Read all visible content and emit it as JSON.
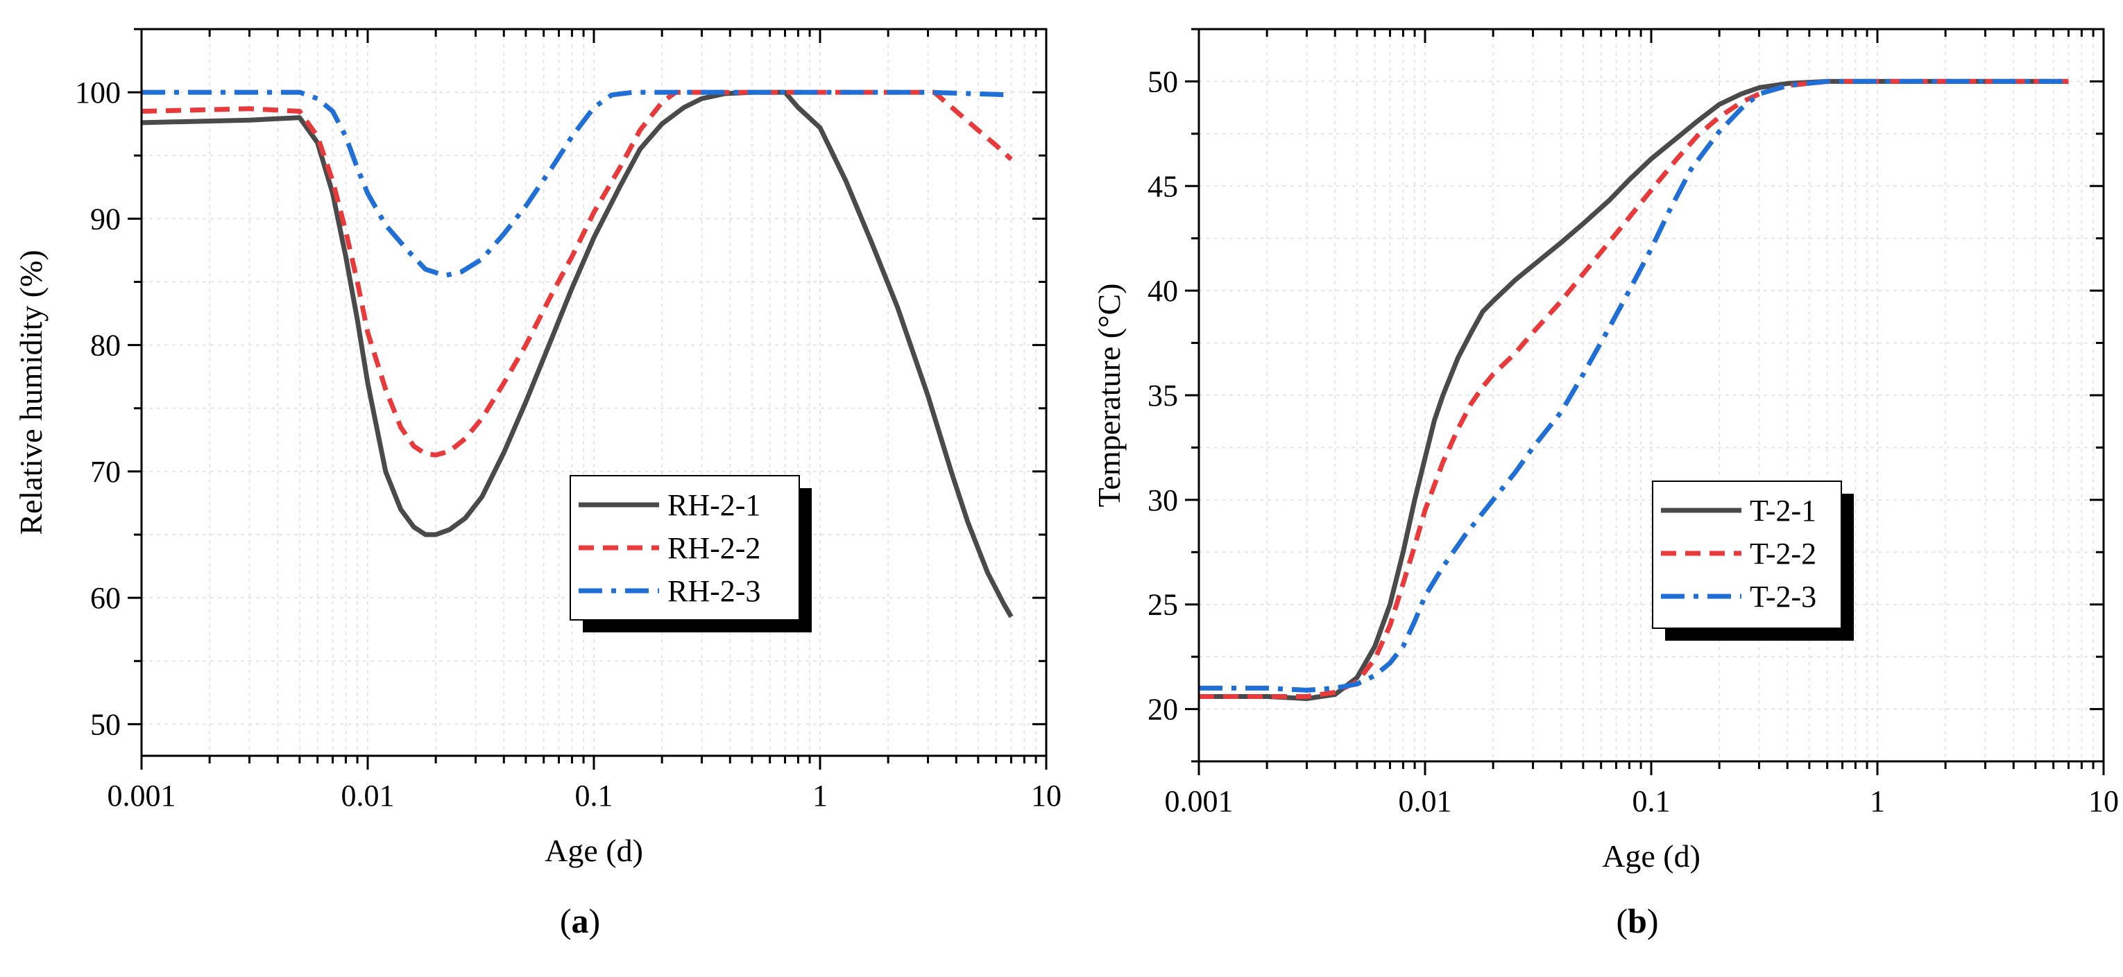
{
  "chart_data": [
    {
      "type": "line",
      "panel_label": "(a)",
      "panel_letter": "a",
      "xlabel": "Age (d)",
      "ylabel": "Relative humidity (%)",
      "xscale": "log",
      "xlim": [
        0.001,
        10
      ],
      "ylim": [
        47.5,
        105
      ],
      "xticks": [
        0.001,
        0.01,
        0.1,
        1,
        10
      ],
      "xtick_labels": [
        "0.001",
        "0.01",
        "0.1",
        "1",
        "10"
      ],
      "yticks": [
        50,
        60,
        70,
        80,
        90,
        100
      ],
      "ytick_labels": [
        "50",
        "60",
        "70",
        "80",
        "90",
        "100"
      ],
      "grid": true,
      "legend_position": "center-right",
      "series": [
        {
          "name": "RH-2-1",
          "color": "#4a4a4a",
          "dash": "solid",
          "x": [
            0.001,
            0.003,
            0.005,
            0.006,
            0.007,
            0.008,
            0.009,
            0.01,
            0.012,
            0.014,
            0.016,
            0.018,
            0.02,
            0.023,
            0.027,
            0.032,
            0.04,
            0.05,
            0.065,
            0.08,
            0.1,
            0.13,
            0.16,
            0.2,
            0.25,
            0.3,
            0.38,
            0.5,
            0.6,
            0.7,
            0.8,
            1.0,
            1.3,
            1.7,
            2.2,
            3.0,
            3.8,
            4.5,
            5.5,
            6.5,
            7.0
          ],
          "y": [
            97.6,
            97.8,
            98.0,
            96.0,
            92.0,
            87.0,
            82.0,
            77.0,
            70.0,
            67.0,
            65.6,
            65.0,
            65.0,
            65.4,
            66.3,
            68.0,
            71.5,
            75.5,
            80.5,
            84.5,
            88.5,
            92.5,
            95.5,
            97.5,
            98.8,
            99.5,
            99.9,
            100.0,
            100.0,
            100.0,
            98.8,
            97.2,
            93.0,
            88.0,
            83.0,
            76.0,
            70.0,
            66.0,
            62.0,
            59.5,
            58.5
          ]
        },
        {
          "name": "RH-2-2",
          "color": "#e83a3a",
          "dash": "dash",
          "x": [
            0.001,
            0.003,
            0.005,
            0.006,
            0.007,
            0.008,
            0.009,
            0.01,
            0.012,
            0.014,
            0.016,
            0.018,
            0.02,
            0.023,
            0.027,
            0.032,
            0.04,
            0.05,
            0.065,
            0.08,
            0.1,
            0.13,
            0.16,
            0.2,
            0.23,
            0.3,
            0.5,
            1.0,
            2.0,
            3.2,
            4.0,
            5.0,
            6.0,
            7.0
          ],
          "y": [
            98.5,
            98.7,
            98.5,
            96.5,
            93.0,
            89.0,
            85.0,
            81.0,
            76.5,
            73.5,
            72.0,
            71.4,
            71.3,
            71.6,
            72.6,
            74.2,
            77.0,
            80.0,
            84.0,
            87.0,
            90.5,
            94.0,
            97.0,
            99.2,
            100.0,
            100.0,
            100.0,
            100.0,
            100.0,
            100.0,
            98.5,
            97.0,
            95.8,
            94.7
          ]
        },
        {
          "name": "RH-2-3",
          "color": "#1f6fd6",
          "dash": "dashdot",
          "x": [
            0.001,
            0.003,
            0.005,
            0.006,
            0.007,
            0.008,
            0.009,
            0.01,
            0.012,
            0.015,
            0.018,
            0.022,
            0.026,
            0.032,
            0.04,
            0.05,
            0.065,
            0.08,
            0.1,
            0.12,
            0.15,
            0.3,
            1.0,
            3.0,
            7.0
          ],
          "y": [
            100.0,
            100.0,
            100.0,
            99.5,
            98.5,
            96.5,
            94.0,
            92.0,
            89.5,
            87.5,
            86.0,
            85.5,
            85.8,
            86.8,
            88.8,
            91.0,
            94.0,
            96.5,
            98.8,
            99.8,
            100.0,
            100.0,
            100.0,
            100.0,
            99.8
          ]
        }
      ]
    },
    {
      "type": "line",
      "panel_label": "(b)",
      "panel_letter": "b",
      "xlabel": "Age (d)",
      "ylabel": "Temperature (°C)",
      "xscale": "log",
      "xlim": [
        0.001,
        10
      ],
      "ylim": [
        17.5,
        52.5
      ],
      "xticks": [
        0.001,
        0.01,
        0.1,
        1,
        10
      ],
      "xtick_labels": [
        "0.001",
        "0.01",
        "0.1",
        "1",
        "10"
      ],
      "yticks": [
        20,
        25,
        30,
        35,
        40,
        45,
        50
      ],
      "ytick_labels": [
        "20",
        "25",
        "30",
        "35",
        "40",
        "45",
        "50"
      ],
      "grid": true,
      "legend_position": "center-right",
      "series": [
        {
          "name": "T-2-1",
          "color": "#4a4a4a",
          "dash": "solid",
          "x": [
            0.001,
            0.002,
            0.003,
            0.004,
            0.005,
            0.006,
            0.007,
            0.008,
            0.009,
            0.01,
            0.011,
            0.012,
            0.014,
            0.016,
            0.018,
            0.02,
            0.025,
            0.03,
            0.04,
            0.05,
            0.065,
            0.08,
            0.1,
            0.13,
            0.16,
            0.2,
            0.25,
            0.3,
            0.4,
            0.6,
            1.0,
            2.0,
            4.0,
            7.0
          ],
          "y": [
            20.6,
            20.6,
            20.5,
            20.7,
            21.5,
            23.0,
            25.0,
            27.5,
            30.0,
            32.0,
            33.8,
            35.0,
            36.8,
            38.0,
            39.0,
            39.5,
            40.5,
            41.2,
            42.3,
            43.2,
            44.3,
            45.3,
            46.3,
            47.3,
            48.1,
            48.9,
            49.4,
            49.7,
            49.9,
            50.0,
            50.0,
            50.0,
            50.0,
            50.0
          ]
        },
        {
          "name": "T-2-2",
          "color": "#e83a3a",
          "dash": "dash",
          "x": [
            0.001,
            0.002,
            0.003,
            0.004,
            0.005,
            0.006,
            0.007,
            0.008,
            0.009,
            0.01,
            0.012,
            0.014,
            0.016,
            0.018,
            0.02,
            0.025,
            0.03,
            0.04,
            0.05,
            0.065,
            0.08,
            0.1,
            0.13,
            0.16,
            0.2,
            0.25,
            0.3,
            0.4,
            0.6,
            1.0,
            3.0,
            7.0
          ],
          "y": [
            20.6,
            20.6,
            20.6,
            20.8,
            21.3,
            22.4,
            24.0,
            26.0,
            27.8,
            29.5,
            31.8,
            33.4,
            34.6,
            35.4,
            36.0,
            37.0,
            38.0,
            39.5,
            40.8,
            42.3,
            43.5,
            44.8,
            46.3,
            47.4,
            48.3,
            49.0,
            49.4,
            49.8,
            50.0,
            50.0,
            50.0,
            50.0
          ]
        },
        {
          "name": "T-2-3",
          "color": "#1f6fd6",
          "dash": "dashdot",
          "x": [
            0.001,
            0.002,
            0.003,
            0.004,
            0.005,
            0.006,
            0.007,
            0.008,
            0.009,
            0.01,
            0.012,
            0.015,
            0.02,
            0.025,
            0.03,
            0.04,
            0.05,
            0.065,
            0.08,
            0.1,
            0.12,
            0.15,
            0.2,
            0.25,
            0.3,
            0.4,
            0.6,
            1.0,
            3.0,
            7.0
          ],
          "y": [
            21.0,
            21.0,
            20.9,
            21.0,
            21.2,
            21.6,
            22.2,
            23.0,
            24.2,
            25.4,
            26.8,
            28.3,
            30.0,
            31.3,
            32.5,
            34.2,
            36.0,
            38.2,
            40.0,
            42.0,
            43.8,
            45.8,
            47.6,
            48.7,
            49.4,
            49.8,
            50.0,
            50.0,
            50.0,
            50.0
          ]
        }
      ]
    }
  ]
}
